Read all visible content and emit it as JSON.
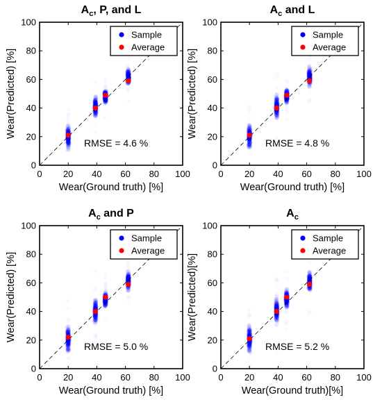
{
  "chart_data": [
    {
      "type": "scatter",
      "title": {
        "main": "A",
        "sub": "c",
        "rest": ", P, and L"
      },
      "xlabel": "Wear(Ground truth) [%]",
      "ylabel": "Wear(Predicted) [%]",
      "xlim": [
        0,
        100
      ],
      "ylim": [
        0,
        100
      ],
      "xticks": [
        "0",
        "20",
        "40",
        "60",
        "80",
        "100"
      ],
      "yticks": [
        "0",
        "20",
        "40",
        "60",
        "80",
        "100"
      ],
      "reference_line": "y = x (dashed)",
      "legend": "top-right",
      "annotation": "RMSE =  4.6 %",
      "series": [
        {
          "name": "Sample",
          "color": "#0000ff",
          "groups": [
            {
              "x": 20,
              "y_range": [
                8,
                32
              ]
            },
            {
              "x": 39,
              "y_range": [
                30,
                51
              ]
            },
            {
              "x": 46,
              "y_range": [
                41,
                55
              ]
            },
            {
              "x": 62,
              "y_range": [
                54,
                70
              ]
            }
          ]
        },
        {
          "name": "Average",
          "color": "#ff0000",
          "x": [
            20,
            39,
            46,
            62
          ],
          "y": [
            21,
            40,
            49,
            59
          ]
        }
      ]
    },
    {
      "type": "scatter",
      "title": {
        "main": "A",
        "sub": "c",
        "rest": " and L"
      },
      "xlabel": "Wear(Ground truth) [%]",
      "ylabel": "Wear(Predicted) [%]",
      "xlim": [
        0,
        100
      ],
      "ylim": [
        0,
        100
      ],
      "xticks": [
        "0",
        "20",
        "40",
        "60",
        "80",
        "100"
      ],
      "yticks": [
        "0",
        "20",
        "40",
        "60",
        "80",
        "100"
      ],
      "reference_line": "y = x (dashed)",
      "legend": "top-right",
      "annotation": "RMSE =  4.8 %",
      "series": [
        {
          "name": "Sample",
          "color": "#0000ff",
          "groups": [
            {
              "x": 20,
              "y_range": [
                8,
                33
              ]
            },
            {
              "x": 39,
              "y_range": [
                29,
                52
              ]
            },
            {
              "x": 46,
              "y_range": [
                41,
                56
              ]
            },
            {
              "x": 62,
              "y_range": [
                53,
                71
              ]
            }
          ]
        },
        {
          "name": "Average",
          "color": "#ff0000",
          "x": [
            20,
            39,
            46,
            62
          ],
          "y": [
            21,
            40,
            49,
            59
          ]
        }
      ]
    },
    {
      "type": "scatter",
      "title": {
        "main": "A",
        "sub": "c",
        "rest": " and P"
      },
      "xlabel": "Wear(Ground truth) [%]",
      "ylabel": "Wear(Predicted) [%]",
      "xlim": [
        0,
        100
      ],
      "ylim": [
        0,
        100
      ],
      "xticks": [
        "0",
        "20",
        "40",
        "60",
        "80",
        "100"
      ],
      "yticks": [
        "0",
        "20",
        "40",
        "60",
        "80",
        "100"
      ],
      "reference_line": "y = x (dashed)",
      "legend": "top-right",
      "annotation": "RMSE =  5.0 %",
      "series": [
        {
          "name": "Sample",
          "color": "#0000ff",
          "groups": [
            {
              "x": 20,
              "y_range": [
                8,
                33
              ]
            },
            {
              "x": 39,
              "y_range": [
                28,
                52
              ]
            },
            {
              "x": 46,
              "y_range": [
                40,
                57
              ]
            },
            {
              "x": 62,
              "y_range": [
                52,
                71
              ]
            }
          ]
        },
        {
          "name": "Average",
          "color": "#ff0000",
          "x": [
            20,
            39,
            46,
            62
          ],
          "y": [
            22,
            40,
            50,
            59
          ]
        }
      ]
    },
    {
      "type": "scatter",
      "title": {
        "main": "A",
        "sub": "c",
        "rest": ""
      },
      "xlabel": "Wear(Ground truth)[%]",
      "ylabel": "Wear(Predicted)[%]",
      "xlim": [
        0,
        100
      ],
      "ylim": [
        0,
        100
      ],
      "xticks": [
        "0",
        "20",
        "40",
        "60",
        "80",
        "100"
      ],
      "yticks": [
        "0",
        "20",
        "40",
        "60",
        "80",
        "100"
      ],
      "reference_line": "y = x (dashed)",
      "legend": "top-right",
      "annotation": "RMSE =  5.2 %",
      "series": [
        {
          "name": "Sample",
          "color": "#0000ff",
          "groups": [
            {
              "x": 20,
              "y_range": [
                8,
                34
              ]
            },
            {
              "x": 39,
              "y_range": [
                28,
                53
              ]
            },
            {
              "x": 46,
              "y_range": [
                40,
                58
              ]
            },
            {
              "x": 62,
              "y_range": [
                51,
                71
              ]
            }
          ]
        },
        {
          "name": "Average",
          "color": "#ff0000",
          "x": [
            20,
            39,
            46,
            62
          ],
          "y": [
            21,
            40,
            50,
            59
          ]
        }
      ]
    }
  ]
}
